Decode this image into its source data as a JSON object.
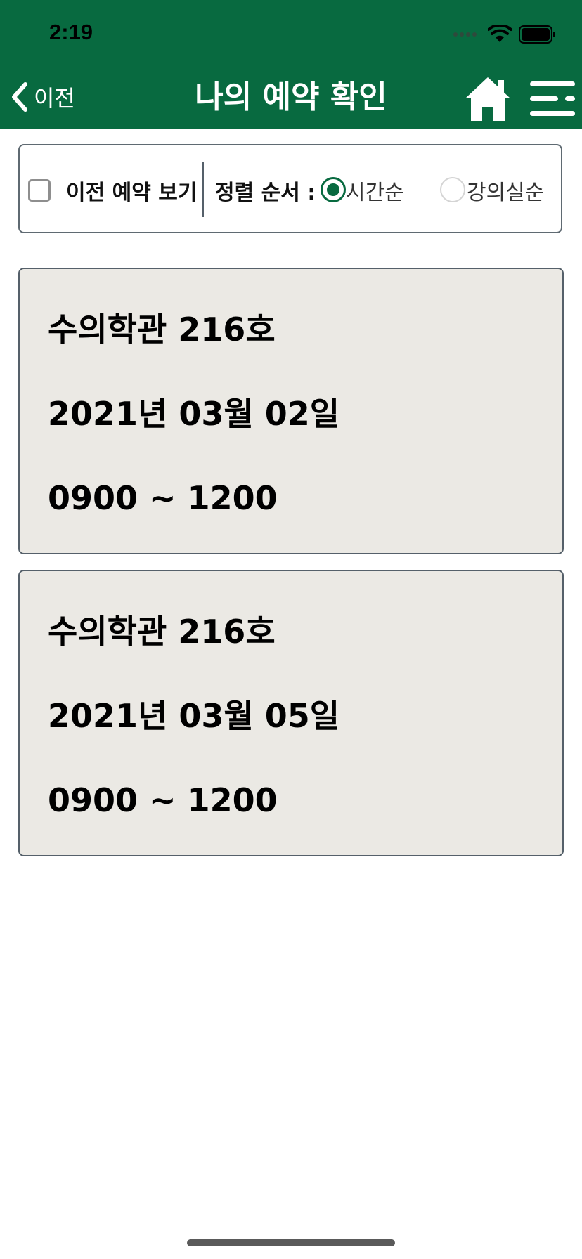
{
  "status_bar": {
    "time": "2:19",
    "icons": [
      "cellular-dots-icon",
      "wifi-icon",
      "battery-icon"
    ]
  },
  "nav": {
    "back_label": "이전",
    "title": "나의 예약 확인",
    "home_icon": "home-icon",
    "menu_icon": "hamburger-menu-icon"
  },
  "filter": {
    "show_past_label": "이전 예약 보기",
    "show_past_checked": false,
    "sort_label": "정렬 순서 :",
    "sort_options": [
      {
        "label": "시간순",
        "selected": true
      },
      {
        "label": "강의실순",
        "selected": false
      }
    ]
  },
  "reservations": [
    {
      "room": "수의학관 216호",
      "date": "2021년 03월 02일",
      "time": "0900 ~ 1200"
    },
    {
      "room": "수의학관 216호",
      "date": "2021년 03월 05일",
      "time": "0900 ~ 1200"
    }
  ],
  "colors": {
    "brand_green": "#086a40",
    "card_background": "#ebe9e4",
    "border": "#55606a"
  }
}
